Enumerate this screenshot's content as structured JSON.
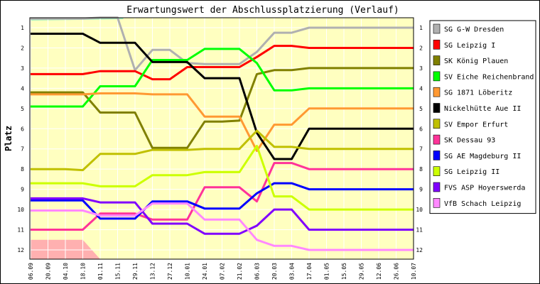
{
  "chart_data": {
    "type": "line",
    "title": "Erwartungswert der Abschlussplatzierung (Verlauf)",
    "ylabel": "Platz",
    "xlabel": "",
    "ylim": [
      1,
      12
    ],
    "y_reversed": true,
    "grid": true,
    "legend_placement": "right",
    "plot_background": "#ffffc0",
    "x": [
      "06.09",
      "20.09",
      "04.10",
      "18.10",
      "01.11",
      "15.11",
      "29.11",
      "13.12",
      "27.12",
      "10.01",
      "24.01",
      "07.02",
      "21.02",
      "06.03",
      "20.03",
      "03.04",
      "17.04",
      "01.05",
      "15.05",
      "29.05",
      "12.06",
      "26.06",
      "10.07"
    ],
    "series": [
      {
        "name": "SG G-W Dresden",
        "color": "#b0b0b0",
        "values": [
          0.55,
          0.55,
          0.55,
          0.55,
          0.5,
          0.5,
          3.1,
          2.1,
          2.1,
          2.75,
          2.8,
          2.8,
          2.8,
          2.2,
          1.25,
          1.25,
          1.0,
          1.0,
          1.0,
          1.0,
          1.0,
          1.0,
          1.0
        ]
      },
      {
        "name": "SG Leipzig I",
        "color": "#ff0000",
        "values": [
          3.3,
          3.3,
          3.3,
          3.3,
          3.15,
          3.15,
          3.15,
          3.55,
          3.55,
          2.95,
          2.95,
          2.95,
          2.95,
          2.45,
          1.9,
          1.9,
          2.0,
          2.0,
          2.0,
          2.0,
          2.0,
          2.0,
          2.0
        ]
      },
      {
        "name": "SK König Plauen",
        "color": "#808000",
        "values": [
          4.2,
          4.2,
          4.2,
          4.2,
          5.2,
          5.2,
          5.2,
          6.95,
          6.95,
          6.95,
          5.65,
          5.65,
          5.6,
          3.3,
          3.1,
          3.1,
          3.0,
          3.0,
          3.0,
          3.0,
          3.0,
          3.0,
          3.0
        ]
      },
      {
        "name": "SV Eiche Reichenbrand",
        "color": "#00ff00",
        "values": [
          4.9,
          4.9,
          4.9,
          4.9,
          3.9,
          3.9,
          3.9,
          2.6,
          2.6,
          2.6,
          2.05,
          2.05,
          2.05,
          2.75,
          4.1,
          4.1,
          4.0,
          4.0,
          4.0,
          4.0,
          4.0,
          4.0,
          4.0
        ]
      },
      {
        "name": "SG 1871 Löberitz",
        "color": "#ff9933",
        "values": [
          4.3,
          4.3,
          4.3,
          4.3,
          4.25,
          4.25,
          4.25,
          4.3,
          4.3,
          4.3,
          5.4,
          5.4,
          5.4,
          7.1,
          5.8,
          5.8,
          5.0,
          5.0,
          5.0,
          5.0,
          5.0,
          5.0,
          5.0
        ]
      },
      {
        "name": "Nickelhütte Aue II",
        "color": "#000000",
        "values": [
          1.3,
          1.3,
          1.3,
          1.3,
          1.75,
          1.75,
          1.75,
          2.7,
          2.7,
          2.7,
          3.5,
          3.5,
          3.5,
          6.2,
          7.5,
          7.5,
          6.0,
          6.0,
          6.0,
          6.0,
          6.0,
          6.0,
          6.0
        ]
      },
      {
        "name": "SV Empor Erfurt",
        "color": "#c0c000",
        "values": [
          8.0,
          8.0,
          8.0,
          8.05,
          7.25,
          7.25,
          7.25,
          7.05,
          7.05,
          7.05,
          7.0,
          7.0,
          7.0,
          6.1,
          6.9,
          6.9,
          7.0,
          7.0,
          7.0,
          7.0,
          7.0,
          7.0,
          7.0
        ]
      },
      {
        "name": "SK Dessau 93",
        "color": "#ff3399",
        "values": [
          11.0,
          11.0,
          11.0,
          11.0,
          10.2,
          10.2,
          10.2,
          10.5,
          10.5,
          10.5,
          8.9,
          8.9,
          8.9,
          9.6,
          7.7,
          7.7,
          8.0,
          8.0,
          8.0,
          8.0,
          8.0,
          8.0,
          8.0
        ]
      },
      {
        "name": "SG AE Magdeburg II",
        "color": "#0000ff",
        "values": [
          9.55,
          9.55,
          9.55,
          9.55,
          10.45,
          10.45,
          10.45,
          9.6,
          9.6,
          9.6,
          9.95,
          9.95,
          9.95,
          9.2,
          8.7,
          8.7,
          9.0,
          9.0,
          9.0,
          9.0,
          9.0,
          9.0,
          9.0
        ]
      },
      {
        "name": "SG Leipzig II",
        "color": "#ccff00",
        "values": [
          8.7,
          8.7,
          8.7,
          8.7,
          8.85,
          8.85,
          8.85,
          8.3,
          8.3,
          8.3,
          8.15,
          8.15,
          8.15,
          6.85,
          9.35,
          9.35,
          10.0,
          10.0,
          10.0,
          10.0,
          10.0,
          10.0,
          10.0
        ]
      },
      {
        "name": "FVS ASP Hoyerswerda",
        "color": "#8000ff",
        "values": [
          9.45,
          9.45,
          9.45,
          9.45,
          9.65,
          9.65,
          9.65,
          10.7,
          10.7,
          10.7,
          11.2,
          11.2,
          11.2,
          10.8,
          10.0,
          10.0,
          11.0,
          11.0,
          11.0,
          11.0,
          11.0,
          11.0,
          11.0
        ]
      },
      {
        "name": "VfB Schach Leipzig",
        "color": "#ff88ff",
        "values": [
          10.05,
          10.05,
          10.05,
          10.05,
          10.3,
          10.3,
          10.3,
          9.7,
          9.7,
          9.7,
          10.5,
          10.5,
          10.5,
          11.5,
          11.8,
          11.8,
          12.0,
          12.0,
          12.0,
          12.0,
          12.0,
          12.0,
          12.0
        ]
      }
    ]
  }
}
